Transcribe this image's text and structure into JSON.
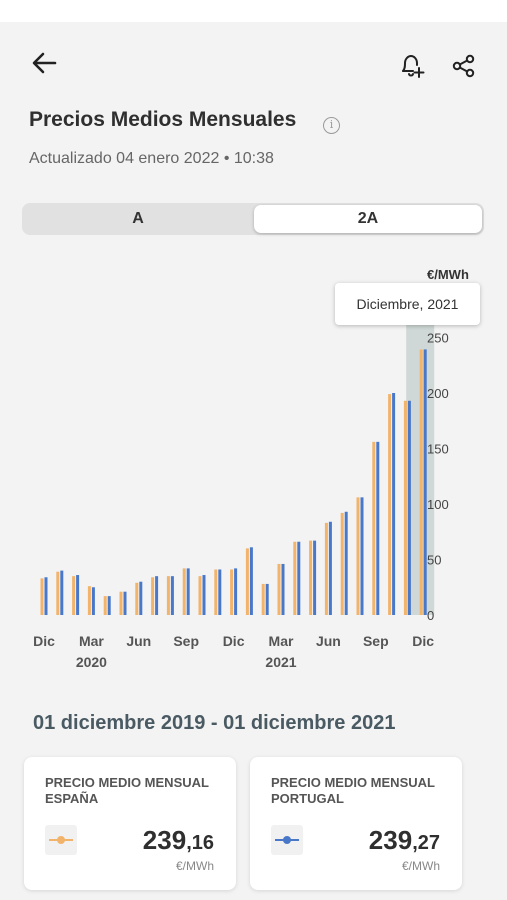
{
  "header": {
    "back_icon": "arrow-left-icon",
    "alert_icon": "bell-plus-icon",
    "share_icon": "share-icon"
  },
  "page": {
    "title": "Precios Medios Mensuales",
    "updated": "Actualizado 04 enero 2022 • 10:38"
  },
  "toggle": {
    "options": [
      "A",
      "2A"
    ],
    "selected": "2A"
  },
  "colors": {
    "spain": "#f2b36a",
    "portugal": "#4a78c9",
    "highlight": "#cfd8d6"
  },
  "chart_data": {
    "type": "bar",
    "unit_label": "€/MWh",
    "y_ticks": [
      "0",
      "50",
      "100",
      "150",
      "200",
      "250"
    ],
    "ylim": [
      0,
      275
    ],
    "x_tick_labels": [
      "Dic",
      "Mar",
      "Jun",
      "Sep",
      "Dic",
      "Mar",
      "Jun",
      "Sep",
      "Dic"
    ],
    "x_year_labels": [
      "2020",
      "2021"
    ],
    "categories": [
      "dic 2019",
      "ene 2020",
      "feb 2020",
      "mar 2020",
      "abr 2020",
      "may 2020",
      "jun 2020",
      "jul 2020",
      "ago 2020",
      "sep 2020",
      "oct 2020",
      "nov 2020",
      "dic 2020",
      "ene 2021",
      "feb 2021",
      "mar 2021",
      "abr 2021",
      "may 2021",
      "jun 2021",
      "jul 2021",
      "ago 2021",
      "sep 2021",
      "oct 2021",
      "nov 2021",
      "dic 2021"
    ],
    "series": [
      {
        "values": [
          33,
          39,
          35,
          26,
          17,
          21,
          29,
          34,
          35,
          42,
          35,
          41,
          41,
          60,
          28,
          46,
          66,
          67,
          83,
          92,
          106,
          156,
          199,
          193,
          239.16
        ]
      },
      {
        "values": [
          34,
          40,
          36,
          25,
          17,
          21,
          30,
          35,
          35,
          42,
          36,
          41,
          42,
          61,
          28,
          46,
          66,
          67,
          84,
          93,
          106,
          156,
          200,
          193,
          239.27
        ]
      }
    ],
    "highlight_index": 24,
    "tooltip": "Diciembre, 2021"
  },
  "summary": {
    "range": "01 diciembre 2019 - 01 diciembre 2021",
    "spain": {
      "title": "PRECIO MEDIO MENSUAL ESPAÑA",
      "int": "239",
      "dec": ",16",
      "unit": "€/MWh"
    },
    "portugal": {
      "title": "PRECIO MEDIO MENSUAL PORTUGAL",
      "int": "239",
      "dec": ",27",
      "unit": "€/MWh"
    }
  }
}
